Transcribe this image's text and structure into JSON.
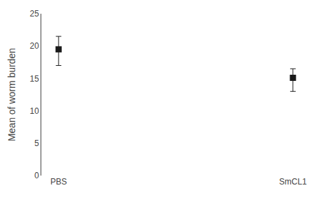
{
  "chart_data": {
    "type": "scatter",
    "categories": [
      "PBS",
      "SmCL1"
    ],
    "values": [
      19.5,
      15.1
    ],
    "error_upper": [
      2.0,
      1.4
    ],
    "error_lower": [
      2.5,
      2.1
    ],
    "ylabel": "Mean of worm burden",
    "ylim": [
      0,
      25
    ],
    "yticks": [
      0,
      5,
      10,
      15,
      20,
      25
    ],
    "marker": "square",
    "color": "#1a1a1a",
    "grid": false
  }
}
